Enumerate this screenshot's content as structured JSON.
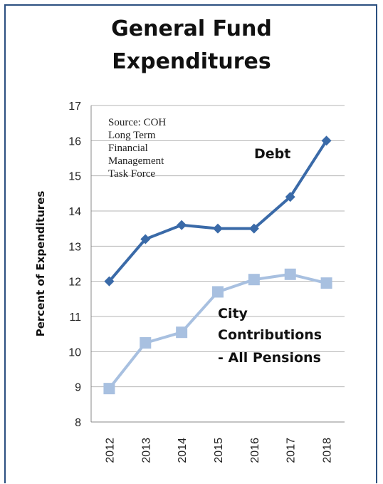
{
  "chart_data": {
    "type": "line",
    "title_lines": [
      "General Fund",
      "Expenditures"
    ],
    "ylabel": "Percent of Expenditures",
    "xlabel": "",
    "ylim": [
      8,
      17
    ],
    "yticks": [
      8,
      9,
      10,
      11,
      12,
      13,
      14,
      15,
      16,
      17
    ],
    "categories": [
      "2012",
      "2013",
      "2014",
      "2015",
      "2016",
      "2017",
      "2018"
    ],
    "grid": true,
    "series": [
      {
        "name": "Debt",
        "color": "#3a6aa8",
        "marker": "diamond",
        "values": [
          12.0,
          13.2,
          13.6,
          13.5,
          13.5,
          14.4,
          16.0
        ]
      },
      {
        "name_lines": [
          "City",
          "Contributions",
          "- All Pensions"
        ],
        "color": "#a8c0e0",
        "marker": "square",
        "values": [
          8.95,
          10.25,
          10.55,
          11.7,
          12.05,
          12.2,
          11.95
        ]
      }
    ],
    "annotation_lines": [
      "Source: COH",
      "Long Term",
      "Financial",
      "Management",
      "Task Force"
    ]
  }
}
